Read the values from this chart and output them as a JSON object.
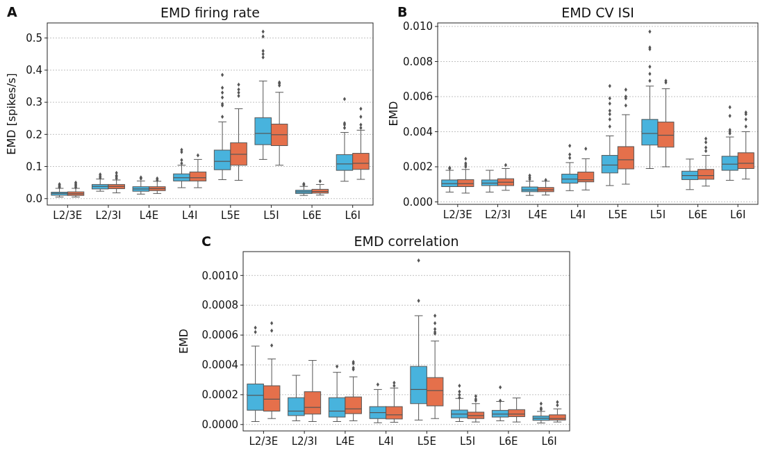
{
  "chart_data": [
    {
      "type": "box",
      "title": "EMD firing rate",
      "ylabel": "EMD [spikes/s]",
      "annotations": [
        "A"
      ],
      "categories": [
        "L2/3E",
        "L2/3I",
        "L4E",
        "L4I",
        "L5E",
        "L5I",
        "L6E",
        "L6I"
      ],
      "ylim": [
        -0.02,
        0.547
      ],
      "yticks": [
        {
          "value": 0,
          "label": "0.0"
        },
        0.1,
        0.2,
        0.3,
        0.4,
        0.5
      ],
      "grid": "y",
      "marker": "diamond",
      "series": [
        {
          "color": "#48b3dd",
          "boxes": [
            {
              "low": 0.005,
              "q1": 0.0105,
              "median": 0.016,
              "q3": 0.02,
              "high": 0.032,
              "outliers": [
                0.035,
                0.038,
                0.042,
                0.045
              ]
            },
            {
              "low": 0.023,
              "q1": 0.03,
              "median": 0.038,
              "q3": 0.044,
              "high": 0.061,
              "outliers": [
                0.065,
                0.07,
                0.075
              ]
            },
            {
              "low": 0.014,
              "q1": 0.023,
              "median": 0.03,
              "q3": 0.037,
              "high": 0.055,
              "outliers": [
                0.062,
                0.066
              ]
            },
            {
              "low": 0.034,
              "q1": 0.055,
              "median": 0.065,
              "q3": 0.077,
              "high": 0.104,
              "outliers": [
                0.11,
                0.12,
                0.145,
                0.152
              ]
            },
            {
              "low": 0.059,
              "q1": 0.09,
              "median": 0.116,
              "q3": 0.151,
              "high": 0.239,
              "outliers": [
                0.255,
                0.29,
                0.295,
                0.315,
                0.33,
                0.345,
                0.385
              ]
            },
            {
              "low": 0.122,
              "q1": 0.168,
              "median": 0.203,
              "q3": 0.252,
              "high": 0.366,
              "outliers": [
                0.44,
                0.45,
                0.46,
                0.505,
                0.52
              ]
            },
            {
              "low": 0.01,
              "q1": 0.016,
              "median": 0.021,
              "q3": 0.026,
              "high": 0.038,
              "outliers": [
                0.043,
                0.046
              ]
            },
            {
              "low": 0.054,
              "q1": 0.088,
              "median": 0.108,
              "q3": 0.137,
              "high": 0.206,
              "outliers": [
                0.22,
                0.23,
                0.235,
                0.31
              ]
            }
          ]
        },
        {
          "color": "#e5704b",
          "boxes": [
            {
              "low": 0.005,
              "q1": 0.01,
              "median": 0.015,
              "q3": 0.021,
              "high": 0.032,
              "outliers": [
                0.035,
                0.04,
                0.045,
                0.05
              ]
            },
            {
              "low": 0.018,
              "q1": 0.031,
              "median": 0.038,
              "q3": 0.044,
              "high": 0.058,
              "outliers": [
                0.063,
                0.068,
                0.072,
                0.08
              ]
            },
            {
              "low": 0.016,
              "q1": 0.025,
              "median": 0.031,
              "q3": 0.037,
              "high": 0.054,
              "outliers": [
                0.058,
                0.063
              ]
            },
            {
              "low": 0.034,
              "q1": 0.055,
              "median": 0.065,
              "q3": 0.083,
              "high": 0.122,
              "outliers": [
                0.135
              ]
            },
            {
              "low": 0.057,
              "q1": 0.104,
              "median": 0.138,
              "q3": 0.174,
              "high": 0.28,
              "outliers": [
                0.32,
                0.33,
                0.34,
                0.355
              ]
            },
            {
              "low": 0.104,
              "q1": 0.165,
              "median": 0.199,
              "q3": 0.232,
              "high": 0.331,
              "outliers": [
                0.352,
                0.358,
                0.362
              ]
            },
            {
              "low": 0.011,
              "q1": 0.017,
              "median": 0.022,
              "q3": 0.029,
              "high": 0.044,
              "outliers": [
                0.054
              ]
            },
            {
              "low": 0.06,
              "q1": 0.091,
              "median": 0.11,
              "q3": 0.141,
              "high": 0.213,
              "outliers": [
                0.22,
                0.23,
                0.255,
                0.28
              ]
            }
          ]
        }
      ]
    },
    {
      "type": "box",
      "title": "EMD CV ISI",
      "ylabel": "EMD",
      "annotations": [
        "B"
      ],
      "categories": [
        "L2/3E",
        "L2/3I",
        "L4E",
        "L4I",
        "L5E",
        "L5I",
        "L6E",
        "L6I"
      ],
      "ylim": [
        -0.00014,
        0.0102
      ],
      "yticks": [
        {
          "value": 0,
          "label": "0.000"
        },
        {
          "value": 0.002,
          "label": "0.002"
        },
        {
          "value": 0.004,
          "label": "0.004"
        },
        {
          "value": 0.006,
          "label": "0.006"
        },
        {
          "value": 0.008,
          "label": "0.008"
        },
        {
          "value": 0.01,
          "label": "0.010"
        }
      ],
      "grid": "y",
      "marker": "diamond",
      "series": [
        {
          "color": "#48b3dd",
          "boxes": [
            {
              "low": 0.00056,
              "q1": 0.00087,
              "median": 0.00104,
              "q3": 0.00125,
              "high": 0.0018,
              "outliers": [
                0.0019,
                0.00195
              ]
            },
            {
              "low": 0.00056,
              "q1": 0.00093,
              "median": 0.00107,
              "q3": 0.00125,
              "high": 0.0018
            },
            {
              "low": 0.00037,
              "q1": 0.00058,
              "median": 0.00068,
              "q3": 0.00085,
              "high": 0.00118,
              "outliers": [
                0.0013,
                0.0014,
                0.0015
              ]
            },
            {
              "low": 0.00064,
              "q1": 0.00107,
              "median": 0.0013,
              "q3": 0.00158,
              "high": 0.00224,
              "outliers": [
                0.0025,
                0.0027,
                0.0032
              ]
            },
            {
              "low": 0.00093,
              "q1": 0.00165,
              "median": 0.0021,
              "q3": 0.00265,
              "high": 0.00376,
              "outliers": [
                0.0043,
                0.0047,
                0.005,
                0.0052,
                0.0056,
                0.0059,
                0.0066
              ]
            },
            {
              "low": 0.0019,
              "q1": 0.00324,
              "median": 0.0039,
              "q3": 0.0047,
              "high": 0.0066,
              "outliers": [
                0.0069,
                0.0073,
                0.0077,
                0.0087,
                0.0088,
                0.0097
              ]
            },
            {
              "low": 0.0007,
              "q1": 0.00127,
              "median": 0.0015,
              "q3": 0.00175,
              "high": 0.00244
            },
            {
              "low": 0.00123,
              "q1": 0.0018,
              "median": 0.00215,
              "q3": 0.0026,
              "high": 0.0037,
              "outliers": [
                0.0039,
                0.004,
                0.0041,
                0.0049,
                0.0054
              ]
            }
          ]
        },
        {
          "color": "#e5704b",
          "boxes": [
            {
              "low": 0.0005,
              "q1": 0.00087,
              "median": 0.00104,
              "q3": 0.00127,
              "high": 0.00185,
              "outliers": [
                0.002,
                0.0021,
                0.0022,
                0.00245
              ]
            },
            {
              "low": 0.00066,
              "q1": 0.00093,
              "median": 0.00112,
              "q3": 0.00132,
              "high": 0.0019,
              "outliers": [
                0.0021
              ]
            },
            {
              "low": 0.00039,
              "q1": 0.00058,
              "median": 0.00069,
              "q3": 0.00082,
              "high": 0.00118,
              "outliers": [
                0.00125
              ]
            },
            {
              "low": 0.00068,
              "q1": 0.00114,
              "median": 0.00126,
              "q3": 0.0017,
              "high": 0.00246,
              "outliers": [
                0.00303
              ]
            },
            {
              "low": 0.00101,
              "q1": 0.00188,
              "median": 0.0024,
              "q3": 0.00315,
              "high": 0.00497,
              "outliers": [
                0.0055,
                0.0059,
                0.006,
                0.0064
              ]
            },
            {
              "low": 0.002,
              "q1": 0.00312,
              "median": 0.0038,
              "q3": 0.00455,
              "high": 0.00645,
              "outliers": [
                0.0068,
                0.0069
              ]
            },
            {
              "low": 0.0009,
              "q1": 0.00129,
              "median": 0.0015,
              "q3": 0.00185,
              "high": 0.00265,
              "outliers": [
                0.0029,
                0.0031,
                0.0034,
                0.0036
              ]
            },
            {
              "low": 0.0013,
              "q1": 0.0019,
              "median": 0.0022,
              "q3": 0.0028,
              "high": 0.004,
              "outliers": [
                0.0043,
                0.0047,
                0.005,
                0.0051
              ]
            }
          ]
        }
      ]
    },
    {
      "type": "box",
      "title": "EMD correlation",
      "ylabel": "EMD",
      "annotations": [
        "C"
      ],
      "categories": [
        "L2/3E",
        "L2/3I",
        "L4E",
        "L4I",
        "L5E",
        "L5I",
        "L6E",
        "L6I"
      ],
      "ylim": [
        -4.3e-05,
        0.00116
      ],
      "yticks": [
        {
          "value": 0,
          "label": "0.0000"
        },
        {
          "value": 0.0002,
          "label": "0.0002"
        },
        {
          "value": 0.0004,
          "label": "0.0004"
        },
        {
          "value": 0.0006,
          "label": "0.0006"
        },
        {
          "value": 0.0008,
          "label": "0.0008"
        },
        {
          "value": 0.001,
          "label": "0.0010"
        }
      ],
      "grid": "y",
      "marker": "diamond",
      "series": [
        {
          "color": "#48b3dd",
          "boxes": [
            {
              "low": 2e-05,
              "q1": 9.6e-05,
              "median": 0.000196,
              "q3": 0.000272,
              "high": 0.000526,
              "outliers": [
                0.00062,
                0.00065
              ]
            },
            {
              "low": 2.5e-05,
              "q1": 6e-05,
              "median": 9e-05,
              "q3": 0.00018,
              "high": 0.00033
            },
            {
              "low": 2e-05,
              "q1": 5e-05,
              "median": 9e-05,
              "q3": 0.00018,
              "high": 0.00035,
              "outliers": [
                0.00039
              ]
            },
            {
              "low": 1.2e-05,
              "q1": 4e-05,
              "median": 8e-05,
              "q3": 0.00012,
              "high": 0.000235,
              "outliers": [
                0.000268
              ]
            },
            {
              "low": 3e-05,
              "q1": 0.00014,
              "median": 0.000235,
              "q3": 0.00039,
              "high": 0.00073,
              "outliers": [
                0.00083,
                0.0011
              ]
            },
            {
              "low": 2e-05,
              "q1": 4.5e-05,
              "median": 7e-05,
              "q3": 9.7e-05,
              "high": 0.000175,
              "outliers": [
                0.00018,
                0.0002,
                0.00022,
                0.00026
              ]
            },
            {
              "low": 2.5e-05,
              "q1": 5e-05,
              "median": 7e-05,
              "q3": 9.5e-05,
              "high": 0.000155,
              "outliers": [
                0.00016,
                0.00025
              ]
            },
            {
              "low": 1e-05,
              "q1": 2.8e-05,
              "median": 4.2e-05,
              "q3": 5.7e-05,
              "high": 8.8e-05,
              "outliers": [
                0.0001,
                0.00011,
                0.00014
              ]
            }
          ]
        },
        {
          "color": "#e5704b",
          "boxes": [
            {
              "low": 4e-05,
              "q1": 9e-05,
              "median": 0.00017,
              "q3": 0.00026,
              "high": 0.00044,
              "outliers": [
                0.00053,
                0.00063,
                0.00068
              ]
            },
            {
              "low": 2e-05,
              "q1": 7e-05,
              "median": 0.000115,
              "q3": 0.00022,
              "high": 0.00043
            },
            {
              "low": 2.5e-05,
              "q1": 7.3e-05,
              "median": 0.000105,
              "q3": 0.000185,
              "high": 0.00032,
              "outliers": [
                0.00037,
                0.00038,
                0.00041,
                0.00042
              ]
            },
            {
              "low": 1.5e-05,
              "q1": 3.7e-05,
              "median": 6.5e-05,
              "q3": 0.00012,
              "high": 0.000245,
              "outliers": [
                0.00026,
                0.00028
              ]
            },
            {
              "low": 4e-05,
              "q1": 0.000125,
              "median": 0.000228,
              "q3": 0.000315,
              "high": 0.00056,
              "outliers": [
                0.00061,
                0.00062,
                0.00064,
                0.00068,
                0.00073
              ]
            },
            {
              "low": 1.7e-05,
              "q1": 4e-05,
              "median": 6e-05,
              "q3": 8.3e-05,
              "high": 0.00014,
              "outliers": [
                0.00016,
                0.00017,
                0.00019
              ]
            },
            {
              "low": 1.7e-05,
              "q1": 5.3e-05,
              "median": 7e-05,
              "q3": 0.0001,
              "high": 0.000178
            },
            {
              "low": 1.7e-05,
              "q1": 3e-05,
              "median": 4e-05,
              "q3": 6.5e-05,
              "high": 0.000105,
              "outliers": [
                0.00013,
                0.00015
              ]
            }
          ]
        }
      ]
    }
  ]
}
